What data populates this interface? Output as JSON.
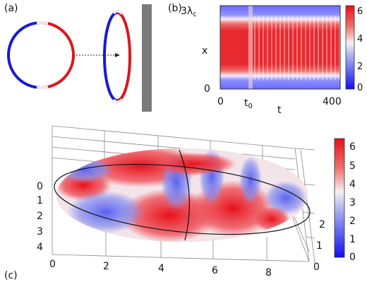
{
  "panel_a": {
    "label": "(a)"
  },
  "panel_b": {
    "label": "(b)",
    "y_axis_label": "x",
    "y_top_label_base": "3λ",
    "y_top_label_sub": "c",
    "y_zero_label": "0",
    "x_axis_label": "t",
    "x_tick_left": "0",
    "x_tick_mid_base": "t",
    "x_tick_mid_sub": "0",
    "x_tick_right": "400",
    "colorbar_ticks": [
      "6",
      "4",
      "2",
      "0"
    ]
  },
  "panel_c": {
    "label": "(c)",
    "y_ticks": [
      "0",
      "1",
      "2",
      "3",
      "4"
    ],
    "x_ticks": [
      "0",
      "2",
      "4",
      "6",
      "8"
    ],
    "z_ticks": [
      "2",
      "1",
      "0"
    ],
    "colorbar_ticks": [
      "6",
      "5",
      "4",
      "3",
      "2",
      "1",
      "0"
    ]
  },
  "colors": {
    "red": "#e8202a",
    "blue": "#1a1aff",
    "white": "#f4f4f8",
    "wall": "#7a7a7a"
  }
}
